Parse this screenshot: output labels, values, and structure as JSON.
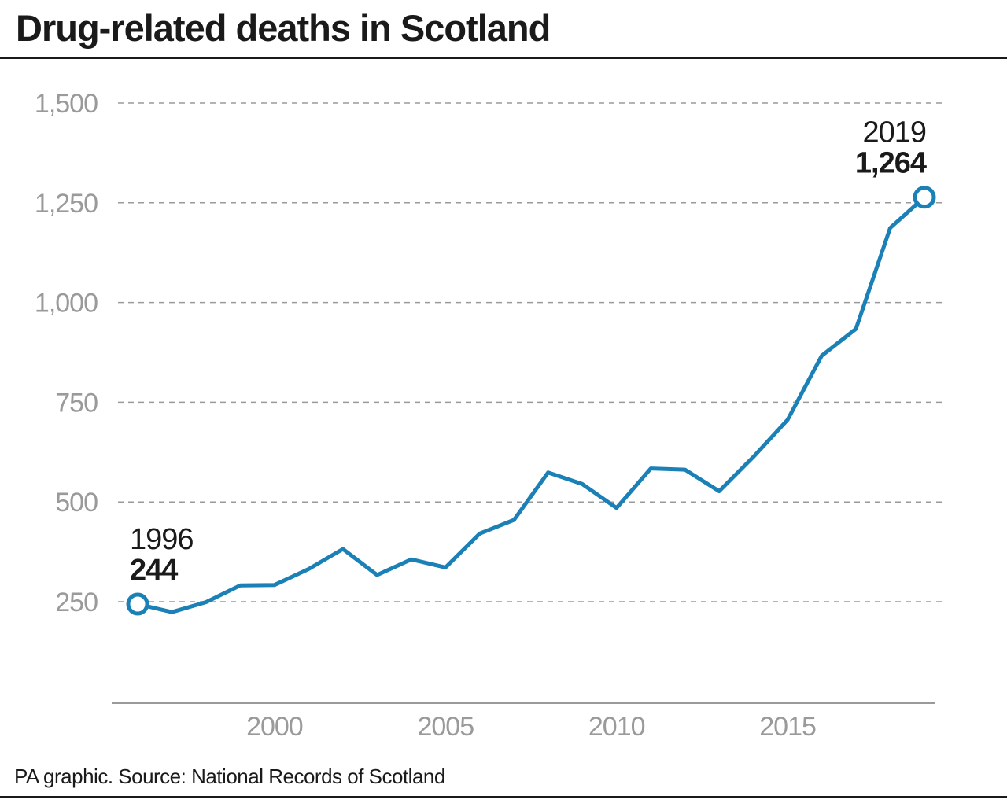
{
  "title": "Drug-related deaths in Scotland",
  "source": "PA graphic. Source: National Records of Scotland",
  "colors": {
    "line": "#1a80b6",
    "grid": "#9a9a9a",
    "text": "#1a1a1a",
    "tick": "#9a9a9a"
  },
  "chart_data": {
    "type": "line",
    "title": "Drug-related deaths in Scotland",
    "xlabel": "",
    "ylabel": "",
    "x": [
      1996,
      1997,
      1998,
      1999,
      2000,
      2001,
      2002,
      2003,
      2004,
      2005,
      2006,
      2007,
      2008,
      2009,
      2010,
      2011,
      2012,
      2013,
      2014,
      2015,
      2016,
      2017,
      2018,
      2019
    ],
    "series": [
      {
        "values": [
          244,
          224,
          249,
          291,
          292,
          332,
          382,
          317,
          356,
          336,
          421,
          455,
          574,
          545,
          485,
          584,
          581,
          527,
          613,
          706,
          867,
          934,
          1187,
          1264
        ]
      }
    ],
    "xticks": [
      "2000",
      "2005",
      "2010",
      "2015"
    ],
    "yticks": [
      "250",
      "500",
      "750",
      "1,000",
      "1,250",
      "1,500"
    ],
    "ylim": [
      0,
      1500
    ],
    "grid": "horizontal dashed",
    "legend": "none",
    "annotations": [
      {
        "year_label": "1996",
        "value_label": "244",
        "x": 1996,
        "y": 244,
        "placement": "above"
      },
      {
        "year_label": "2019",
        "value_label": "1,264",
        "x": 2019,
        "y": 1264,
        "placement": "above-right"
      }
    ]
  }
}
